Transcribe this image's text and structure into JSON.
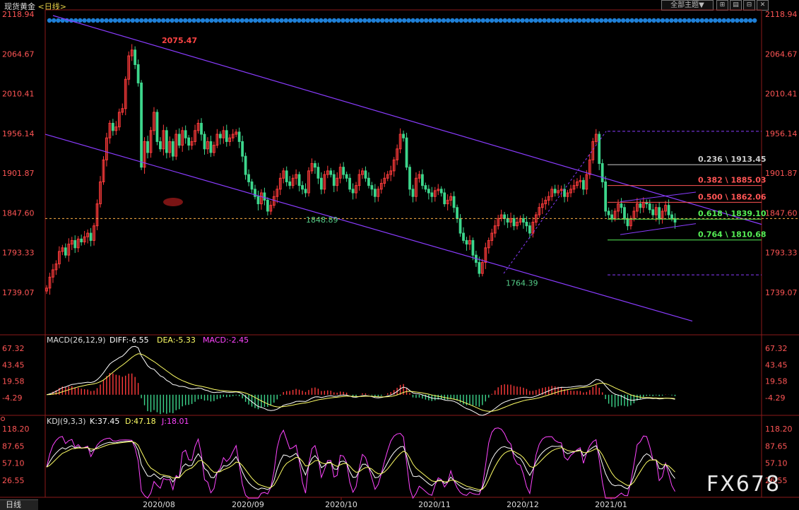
{
  "header": {
    "instrument": "现货黄金",
    "period": "<日线>",
    "theme_button": "全部主题▼",
    "window_buttons": [
      "⊞",
      "▤",
      "⊟",
      "✕"
    ]
  },
  "bottom_tab": "日线",
  "watermark": "FX678",
  "colors": {
    "up": "#ff3b3b",
    "down": "#3dd68c",
    "channel": "#8a3cff",
    "fib": "#dddddd",
    "dashed": "#ffb347",
    "diff": "#ffffff",
    "dea": "#ffff66",
    "macd_line": "#ff44ff",
    "k": "#ffffff",
    "d": "#ffff66",
    "j": "#ff44ff",
    "axis_text": "#ff5555"
  },
  "chart_data": [
    {
      "type": "candlestick",
      "title": "现货黄金 <日线>",
      "y_ticks": [
        "2118.94",
        "2064.67",
        "2010.41",
        "1956.14",
        "1901.87",
        "1847.60",
        "1793.33",
        "1739.07"
      ],
      "ylim": [
        1700,
        2130
      ],
      "x_ticks": [
        "2020/08",
        "2020/09",
        "2020/10",
        "2020/11",
        "2020/12",
        "2021/01"
      ],
      "annotations": [
        "2075.47",
        "1848.89",
        "1764.39"
      ],
      "fib_levels": [
        {
          "label": "0.236 \\ 1913.45",
          "value": 1913.45
        },
        {
          "label": "0.382 \\ 1885.03",
          "value": 1885.03
        },
        {
          "label": "0.500 \\ 1862.06",
          "value": 1862.06
        },
        {
          "label": "0.618 \\ 1839.10",
          "value": 1839.1
        },
        {
          "label": "0.764 \\ 1810.68",
          "value": 1810.68
        }
      ],
      "fib_bounds": [
        1959,
        1763
      ],
      "reference_price": 1840,
      "close": [
        1745,
        1760,
        1770,
        1778,
        1795,
        1800,
        1790,
        1805,
        1810,
        1800,
        1812,
        1808,
        1815,
        1820,
        1810,
        1830,
        1860,
        1890,
        1920,
        1950,
        1970,
        1960,
        1965,
        1985,
        1990,
        2030,
        2062,
        2070,
        2050,
        2025,
        1910,
        1945,
        1930,
        1960,
        1985,
        1945,
        1935,
        1960,
        1930,
        1945,
        1925,
        1955,
        1940,
        1960,
        1950,
        1940,
        1945,
        1960,
        1970,
        1955,
        1935,
        1945,
        1930,
        1940,
        1955,
        1950,
        1960,
        1945,
        1950,
        1955,
        1958,
        1945,
        1925,
        1900,
        1890,
        1880,
        1870,
        1860,
        1875,
        1865,
        1850,
        1858,
        1870,
        1880,
        1895,
        1905,
        1890,
        1885,
        1895,
        1900,
        1885,
        1880,
        1875,
        1905,
        1915,
        1910,
        1895,
        1880,
        1900,
        1905,
        1900,
        1885,
        1895,
        1910,
        1900,
        1895,
        1880,
        1875,
        1885,
        1900,
        1905,
        1895,
        1885,
        1880,
        1870,
        1880,
        1888,
        1895,
        1900,
        1905,
        1920,
        1935,
        1955,
        1950,
        1910,
        1880,
        1870,
        1895,
        1900,
        1885,
        1880,
        1875,
        1870,
        1878,
        1880,
        1875,
        1860,
        1865,
        1870,
        1855,
        1840,
        1820,
        1810,
        1805,
        1810,
        1790,
        1780,
        1765,
        1780,
        1800,
        1810,
        1820,
        1830,
        1840,
        1845,
        1840,
        1835,
        1840,
        1830,
        1835,
        1840,
        1835,
        1830,
        1820,
        1835,
        1845,
        1855,
        1860,
        1865,
        1870,
        1880,
        1875,
        1878,
        1880,
        1870,
        1875,
        1880,
        1885,
        1890,
        1892,
        1880,
        1900,
        1920,
        1945,
        1955,
        1915,
        1890,
        1850,
        1845,
        1840,
        1850,
        1860,
        1855,
        1840,
        1830,
        1840,
        1850,
        1860,
        1855,
        1862,
        1860,
        1852,
        1845,
        1855,
        1840,
        1850,
        1858,
        1845,
        1840,
        1835
      ],
      "macd": {
        "label": "MACD(26,12,9)",
        "diff_label": "DIFF:-6.55",
        "dea_label": "DEA:-5.33",
        "macd_label": "MACD:-2.45",
        "y_ticks": [
          "67.32",
          "43.45",
          "19.58",
          "-4.29"
        ],
        "ylim": [
          -12,
          72
        ]
      },
      "kdj": {
        "label": "KDJ(9,3,3)",
        "k_label": "K:37.45",
        "d_label": "D:47.18",
        "j_label": "J:18.01",
        "y_ticks": [
          "118.20",
          "87.65",
          "57.10",
          "26.55"
        ],
        "ylim": [
          5,
          125
        ]
      }
    }
  ]
}
